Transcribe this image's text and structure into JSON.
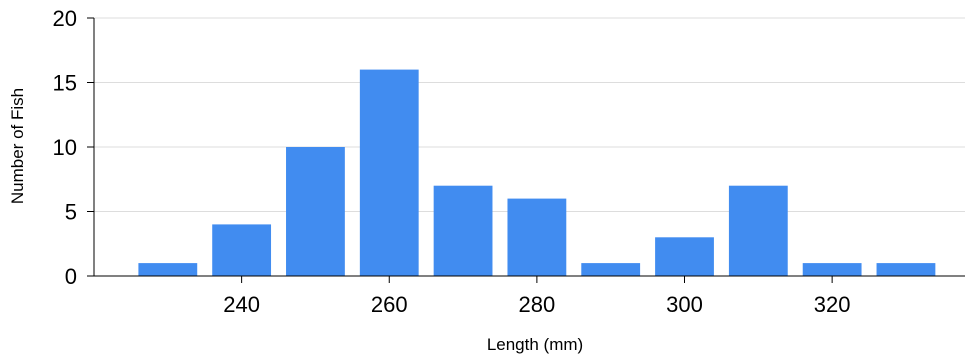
{
  "chart_data": {
    "type": "bar",
    "title": "",
    "xlabel": "Length (mm)",
    "ylabel": "Number of Fish",
    "bin_width": 10,
    "bin_centers": [
      230,
      240,
      250,
      260,
      270,
      280,
      290,
      300,
      310,
      320,
      330
    ],
    "values": [
      1,
      4,
      10,
      16,
      7,
      6,
      1,
      3,
      7,
      1,
      1
    ],
    "xlim": [
      220,
      338
    ],
    "ylim": [
      0,
      20
    ],
    "x_ticks": [
      240,
      260,
      280,
      300,
      320
    ],
    "y_ticks": [
      0,
      5,
      10,
      15,
      20
    ],
    "grid": "horizontal",
    "legend": "none",
    "bar_color": "#418cf0",
    "grid_color": "#dddddd",
    "axis_color": "#000000"
  }
}
